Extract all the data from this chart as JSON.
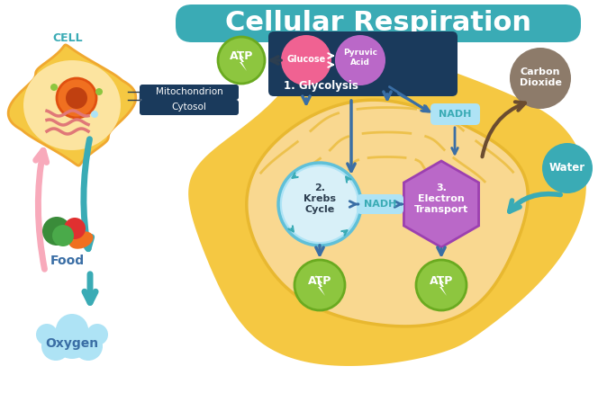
{
  "title": "Cellular Respiration",
  "title_color": "#2c2c2c",
  "title_banner_color": "#3aabb5",
  "bg_color": "#ffffff",
  "cell_label": "CELL",
  "cell_label_color": "#3aabb5",
  "mitochondrion_label": "Mitochondrion",
  "cytosol_label": "Cytosol",
  "label_box_color": "#1a3a5c",
  "label_text_color": "#ffffff",
  "atp_color": "#8dc63f",
  "atp_text": "ATP",
  "atp_text_color": "#ffffff",
  "glucose_color": "#f06292",
  "pyruvic_color": "#ba68c8",
  "glycolysis_label": "1. Glycolysis",
  "glycolysis_box_color": "#1a3a5c",
  "glycolysis_text_color": "#ffffff",
  "nadh_box_color": "#aee3f5",
  "nadh_text_color": "#3aabb5",
  "krebs_color": "#aee3f5",
  "krebs_text": "2.\nKrebs\nCycle",
  "electron_color": "#ba68c8",
  "electron_text": "3.\nElectron\nTransport",
  "food_label": "Food",
  "food_color": "#f06292",
  "oxygen_label": "Oxygen",
  "oxygen_color": "#aee3f5",
  "carbon_dioxide_label": "Carbon\nDioxide",
  "carbon_dioxide_color": "#8d7b6a",
  "water_label": "Water",
  "water_color": "#3aabb5",
  "mito_body_color": "#f5c842",
  "mito_inner_color": "#f5d98e",
  "arrow_color": "#3a6ea5",
  "dark_arrow_color": "#2c3e50"
}
